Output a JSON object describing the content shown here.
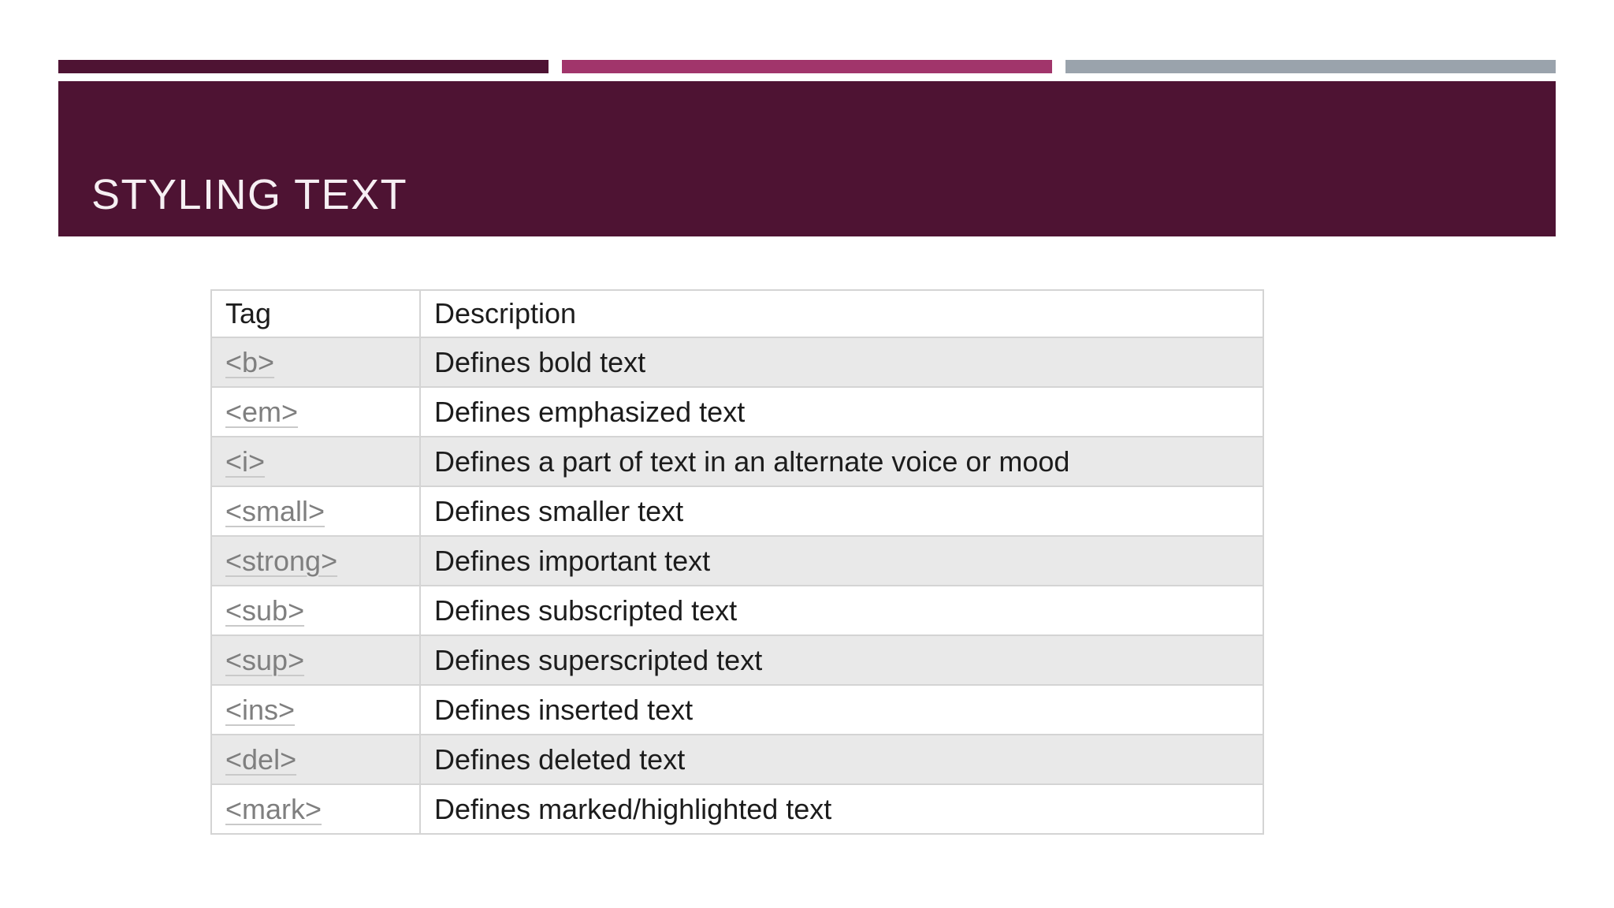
{
  "slide": {
    "title": "STYLING TEXT",
    "title_banner_color": "#4e1333",
    "title_text_color": "#f6eff3",
    "accent_bars": [
      {
        "name": "maroon-accent-bar",
        "color": "#4e1333"
      },
      {
        "name": "magenta-accent-bar",
        "color": "#a1356b"
      },
      {
        "name": "gray-accent-bar",
        "color": "#9aa3ac"
      }
    ]
  },
  "table": {
    "stripe_color": "#e9e9e9",
    "link_color": "#7f7f7f",
    "link_underline_color": "#c9c9c9",
    "headers": [
      "Tag",
      "Description"
    ],
    "rows": [
      {
        "tag": "<b>",
        "description": "Defines bold text"
      },
      {
        "tag": "<em>",
        "description": "Defines emphasized text"
      },
      {
        "tag": "<i>",
        "description": "Defines a part of text in an alternate voice or mood"
      },
      {
        "tag": "<small>",
        "description": "Defines smaller text"
      },
      {
        "tag": "<strong>",
        "description": "Defines important text"
      },
      {
        "tag": "<sub>",
        "description": "Defines subscripted text"
      },
      {
        "tag": "<sup>",
        "description": "Defines superscripted text"
      },
      {
        "tag": "<ins>",
        "description": "Defines inserted text"
      },
      {
        "tag": "<del>",
        "description": "Defines deleted text"
      },
      {
        "tag": "<mark>",
        "description": "Defines marked/highlighted text"
      }
    ]
  }
}
